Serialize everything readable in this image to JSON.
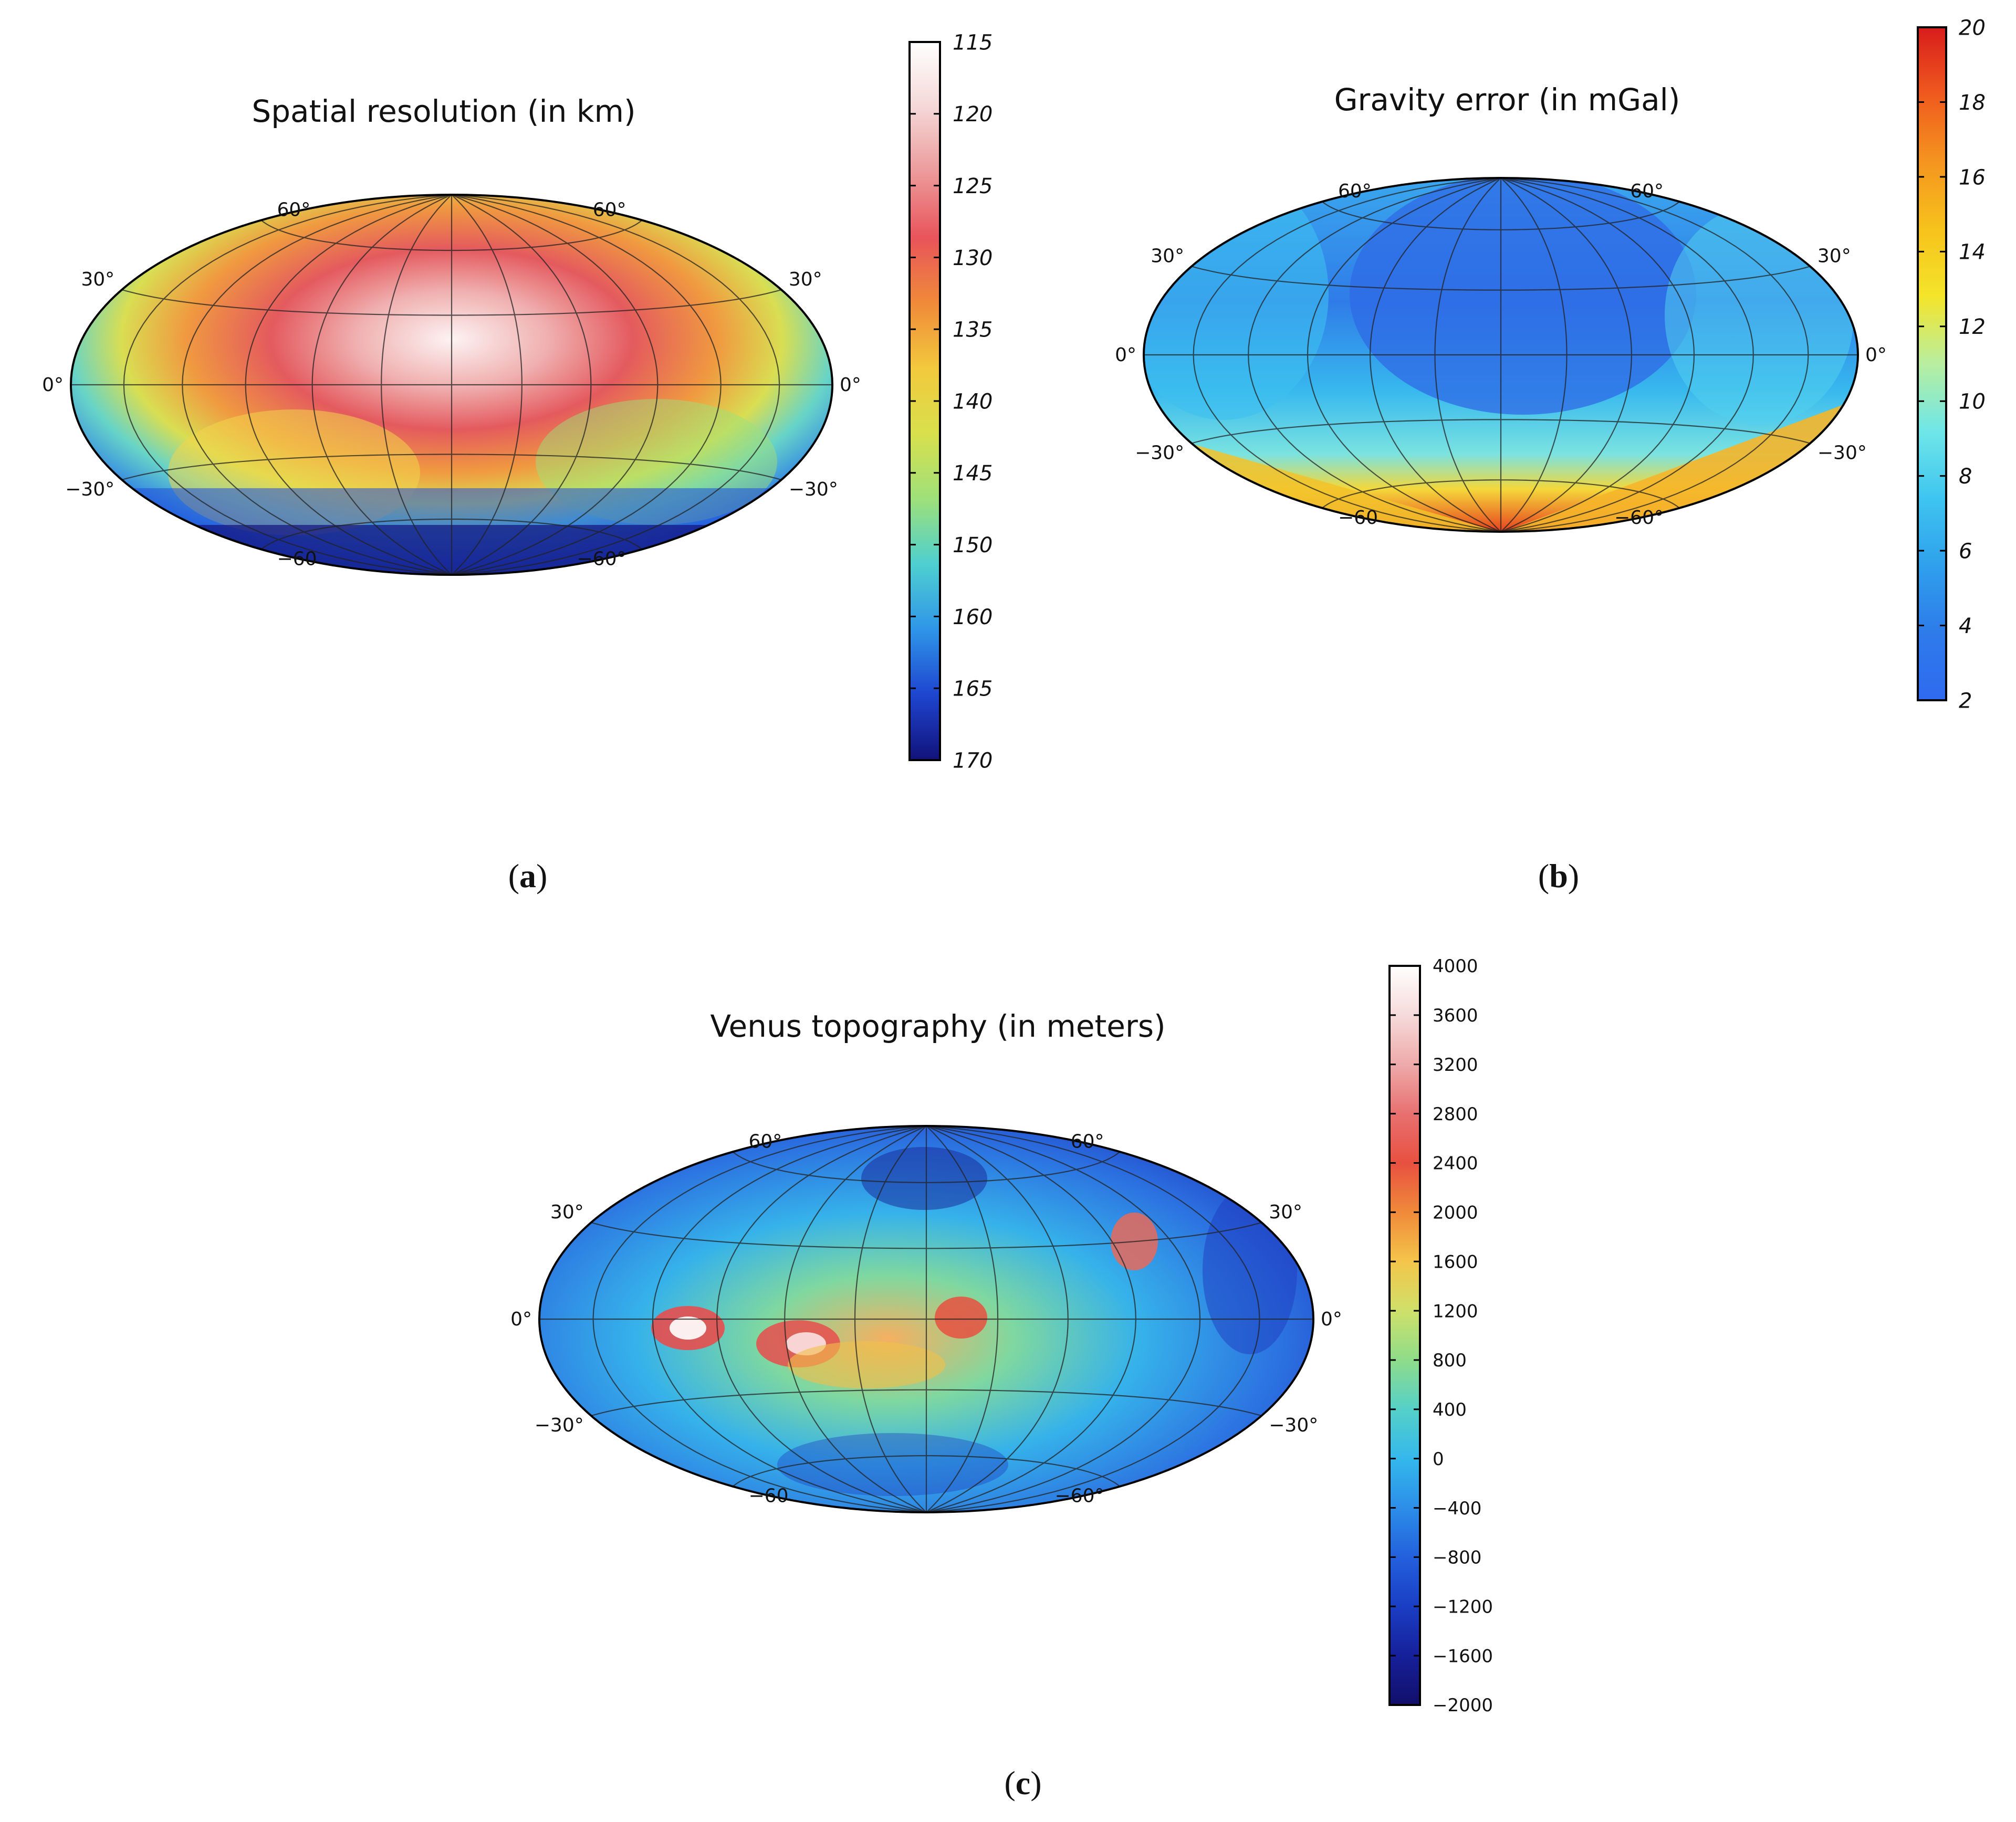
{
  "figure": {
    "panels": [
      {
        "id": "a",
        "title": "Spatial resolution (in km)",
        "caption_letter": "a",
        "colorbar": {
          "ticks": [
            "115",
            "120",
            "125",
            "130",
            "135",
            "140",
            "145",
            "150",
            "160",
            "165",
            "170"
          ],
          "colors": [
            "#ffffff",
            "#f5d7d7",
            "#ec9a9a",
            "#e8545a",
            "#f08a3a",
            "#f2c93c",
            "#d8e04c",
            "#9ee07a",
            "#4ecfd0",
            "#2f95e8",
            "#1e45d0",
            "#12127a"
          ],
          "orientation": "top-to-bottom"
        },
        "map": {
          "lat_labels_left": [
            "60°",
            "30°",
            "0°",
            "−30°",
            "−60"
          ],
          "lat_labels_right": [
            "60°",
            "30°",
            "0°",
            "−30°",
            "−60°"
          ]
        }
      },
      {
        "id": "b",
        "title": "Gravity error (in mGal)",
        "caption_letter": "b",
        "colorbar": {
          "ticks": [
            "20",
            "18",
            "16",
            "14",
            "12",
            "10",
            "8",
            "6",
            "4",
            "2"
          ],
          "colors": [
            "#d81c1c",
            "#ef5a1e",
            "#f5951f",
            "#f6c21c",
            "#f4e52a",
            "#b8eea0",
            "#6fe6e8",
            "#3ec5f0",
            "#2fa0ec",
            "#2e7bea",
            "#2f6af0"
          ],
          "orientation": "top-to-bottom"
        },
        "map": {
          "lat_labels_left": [
            "60°",
            "30°",
            "0°",
            "−30°",
            "−60"
          ],
          "lat_labels_right": [
            "60°",
            "30°",
            "0°",
            "−30°",
            "−60°"
          ]
        }
      },
      {
        "id": "c",
        "title": "Venus topography (in meters)",
        "caption_letter": "c",
        "colorbar": {
          "ticks": [
            "4000",
            "3600",
            "3200",
            "2800",
            "2400",
            "2000",
            "1600",
            "1200",
            "800",
            "400",
            "0",
            "−400",
            "−800",
            "−1200",
            "−1600",
            "−2000"
          ],
          "colors": [
            "#ffffff",
            "#f6dada",
            "#eeaaaa",
            "#e87070",
            "#e85040",
            "#f08a3a",
            "#f4c54a",
            "#cfe06a",
            "#8fdc8a",
            "#55d0c8",
            "#34b8ec",
            "#2c8ee8",
            "#2360dc",
            "#1a3ec4",
            "#16209a",
            "#120f6a"
          ],
          "orientation": "top-to-bottom"
        },
        "map": {
          "lat_labels_left": [
            "60°",
            "30°",
            "0°",
            "−30°",
            "−60"
          ],
          "lat_labels_right": [
            "60°",
            "30°",
            "0°",
            "−30°",
            "−60°"
          ]
        }
      }
    ],
    "caption_parens": [
      "(",
      ")"
    ]
  },
  "chart_data": [
    {
      "type": "heatmap",
      "title": "Spatial resolution (in km)",
      "projection": "Hammer-Aitoff global map",
      "colorbar_label_values": [
        115,
        120,
        125,
        130,
        135,
        140,
        145,
        150,
        160,
        165,
        170
      ],
      "colorbar_range": [
        115,
        170
      ],
      "latitude_gridlines": [
        -60,
        -30,
        0,
        30,
        60
      ],
      "legend": "right colorbar"
    },
    {
      "type": "heatmap",
      "title": "Gravity error (in mGal)",
      "projection": "Hammer-Aitoff global map",
      "colorbar_label_values": [
        2,
        4,
        6,
        8,
        10,
        12,
        14,
        16,
        18,
        20
      ],
      "colorbar_range": [
        2,
        20
      ],
      "latitude_gridlines": [
        -60,
        -30,
        0,
        30,
        60
      ],
      "legend": "right colorbar"
    },
    {
      "type": "heatmap",
      "title": "Venus topography (in meters)",
      "projection": "Hammer-Aitoff global map",
      "colorbar_label_values": [
        -2000,
        -1600,
        -1200,
        -800,
        -400,
        0,
        400,
        800,
        1200,
        1600,
        2000,
        2400,
        2800,
        3200,
        3600,
        4000
      ],
      "colorbar_range": [
        -2000,
        4000
      ],
      "latitude_gridlines": [
        -60,
        -30,
        0,
        30,
        60
      ],
      "legend": "right colorbar"
    }
  ]
}
